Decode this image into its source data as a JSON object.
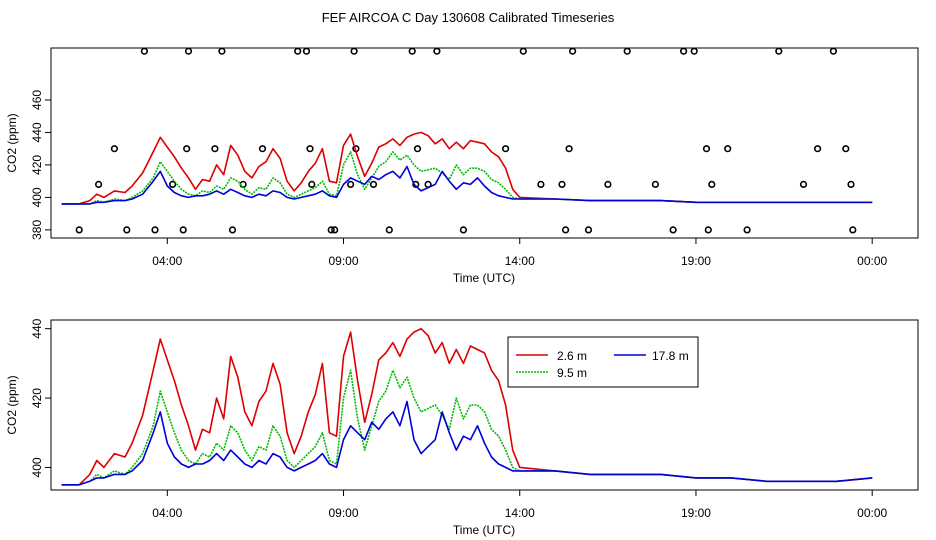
{
  "title": "FEF AIRCOA C  Day 130608  Calibrated Timeseries",
  "chart_data": [
    {
      "type": "line",
      "ylabel": "CO2 (ppm)",
      "xlabel": "Time (UTC)",
      "xlim": [
        -0.3,
        24.3
      ],
      "ylim": [
        375,
        492
      ],
      "x_ticks": [
        {
          "x": 3,
          "label": "04:00"
        },
        {
          "x": 8,
          "label": "09:00"
        },
        {
          "x": 13,
          "label": "14:00"
        },
        {
          "x": 18,
          "label": "19:00"
        },
        {
          "x": 23,
          "label": "00:00"
        }
      ],
      "y_ticks": [
        380,
        400,
        420,
        440,
        460
      ],
      "series": [
        {
          "name": "2.6 m",
          "color": "#dd0000",
          "x": [
            0,
            0.5,
            0.8,
            1.0,
            1.2,
            1.5,
            1.8,
            2.0,
            2.3,
            2.6,
            2.8,
            3.0,
            3.2,
            3.4,
            3.6,
            3.8,
            4.0,
            4.2,
            4.4,
            4.6,
            4.8,
            5.0,
            5.2,
            5.4,
            5.6,
            5.8,
            6.0,
            6.2,
            6.4,
            6.6,
            6.8,
            7.0,
            7.2,
            7.4,
            7.6,
            7.8,
            8.0,
            8.2,
            8.4,
            8.6,
            8.8,
            9.0,
            9.2,
            9.4,
            9.6,
            9.8,
            10.0,
            10.2,
            10.4,
            10.6,
            10.8,
            11.0,
            11.2,
            11.4,
            11.6,
            11.8,
            12.0,
            12.2,
            12.4,
            12.6,
            12.8,
            13,
            14,
            15,
            16,
            17,
            18,
            19,
            20,
            21,
            22,
            23
          ],
          "y": [
            396,
            396,
            398,
            402,
            400,
            404,
            403,
            407,
            415,
            428,
            437,
            431,
            425,
            418,
            412,
            405,
            411,
            410,
            420,
            414,
            432,
            426,
            416,
            412,
            419,
            422,
            430,
            424,
            410,
            404,
            409,
            416,
            421,
            430,
            410,
            409,
            432,
            439,
            425,
            413,
            421,
            431,
            433,
            436,
            432,
            437,
            439,
            440,
            438,
            433,
            436,
            430,
            434,
            430,
            435,
            434,
            433,
            428,
            425,
            418,
            405,
            400,
            399,
            398,
            398,
            398,
            397,
            397,
            397,
            397,
            397,
            397
          ]
        },
        {
          "name": "9.5 m",
          "color": "#00bb00",
          "x": [
            0,
            0.5,
            0.8,
            1.0,
            1.2,
            1.5,
            1.8,
            2.0,
            2.3,
            2.6,
            2.8,
            3.0,
            3.2,
            3.4,
            3.6,
            3.8,
            4.0,
            4.2,
            4.4,
            4.6,
            4.8,
            5.0,
            5.2,
            5.4,
            5.6,
            5.8,
            6.0,
            6.2,
            6.4,
            6.6,
            6.8,
            7.0,
            7.2,
            7.4,
            7.6,
            7.8,
            8.0,
            8.2,
            8.4,
            8.6,
            8.8,
            9.0,
            9.2,
            9.4,
            9.6,
            9.8,
            10.0,
            10.2,
            10.4,
            10.6,
            10.8,
            11.0,
            11.2,
            11.4,
            11.6,
            11.8,
            12.0,
            12.2,
            12.4,
            12.6,
            12.8,
            13,
            14,
            15,
            16,
            17,
            18,
            19,
            20,
            21,
            22,
            23
          ],
          "y": [
            396,
            396,
            396,
            398,
            397,
            399,
            398,
            400,
            404,
            412,
            422,
            416,
            410,
            405,
            402,
            401,
            404,
            403,
            407,
            405,
            412,
            410,
            405,
            402,
            406,
            405,
            412,
            409,
            402,
            400,
            402,
            404,
            406,
            410,
            402,
            401,
            420,
            428,
            414,
            405,
            412,
            419,
            422,
            428,
            423,
            426,
            420,
            416,
            417,
            418,
            415,
            411,
            420,
            414,
            418,
            418,
            416,
            411,
            409,
            405,
            400,
            399,
            399,
            398,
            398,
            398,
            397,
            397,
            397,
            397,
            397,
            397
          ]
        },
        {
          "name": "17.8 m",
          "color": "#0000dd",
          "x": [
            0,
            0.5,
            0.8,
            1.0,
            1.2,
            1.5,
            1.8,
            2.0,
            2.3,
            2.6,
            2.8,
            3.0,
            3.2,
            3.4,
            3.6,
            3.8,
            4.0,
            4.2,
            4.4,
            4.6,
            4.8,
            5.0,
            5.2,
            5.4,
            5.6,
            5.8,
            6.0,
            6.2,
            6.4,
            6.6,
            6.8,
            7.0,
            7.2,
            7.4,
            7.6,
            7.8,
            8.0,
            8.2,
            8.4,
            8.6,
            8.8,
            9.0,
            9.2,
            9.4,
            9.6,
            9.8,
            10.0,
            10.2,
            10.4,
            10.6,
            10.8,
            11.0,
            11.2,
            11.4,
            11.6,
            11.8,
            12.0,
            12.2,
            12.4,
            12.6,
            12.8,
            13,
            14,
            15,
            16,
            17,
            18,
            19,
            20,
            21,
            22,
            23
          ],
          "y": [
            396,
            396,
            396,
            397,
            397,
            398,
            398,
            399,
            402,
            410,
            416,
            407,
            403,
            401,
            400,
            401,
            401,
            402,
            404,
            402,
            405,
            403,
            401,
            400,
            402,
            401,
            404,
            403,
            400,
            399,
            400,
            401,
            402,
            404,
            401,
            400,
            408,
            412,
            410,
            408,
            413,
            411,
            414,
            416,
            412,
            419,
            408,
            404,
            406,
            408,
            416,
            410,
            405,
            409,
            408,
            412,
            407,
            403,
            401,
            400,
            399,
            399,
            399,
            398,
            398,
            398,
            397,
            397,
            397,
            397,
            397,
            397
          ]
        }
      ],
      "point_series": {
        "x": [
          0.5,
          1.05,
          1.5,
          1.85,
          2.35,
          2.65,
          3.15,
          3.45,
          3.55,
          3.6,
          4.35,
          4.55,
          4.85,
          5.15,
          5.7,
          6.7,
          6.95,
          7.05,
          7.1,
          7.65,
          7.75,
          8.2,
          8.3,
          8.35,
          8.85,
          9.3,
          9.95,
          10.05,
          10.1,
          10.4,
          10.65,
          11.4,
          12.6,
          13.1,
          13.6,
          14.2,
          14.3,
          14.4,
          14.5,
          14.95,
          15.5,
          16.05,
          16.85,
          17.35,
          17.65,
          17.95,
          18.3,
          18.35,
          18.45,
          18.9,
          19.45,
          20.35,
          21.05,
          21.45,
          21.9,
          22.25,
          22.4,
          22.45
        ],
        "y": [
          380,
          408,
          430,
          380,
          490,
          380,
          408,
          380,
          430,
          490,
          430,
          490,
          380,
          408,
          430,
          490,
          490,
          430,
          408,
          380,
          380,
          408,
          490,
          430,
          408,
          380,
          490,
          408,
          430,
          408,
          490,
          380,
          430,
          490,
          408,
          408,
          380,
          430,
          490,
          380,
          408,
          490,
          408,
          380,
          490,
          490,
          430,
          380,
          408,
          430,
          380,
          490,
          408,
          430,
          490,
          430,
          408,
          380
        ]
      }
    },
    {
      "type": "line",
      "ylabel": "CO2 (ppm)",
      "xlabel": "Time (UTC)",
      "xlim": [
        -0.3,
        24.3
      ],
      "ylim": [
        393.5,
        442.5
      ],
      "x_ticks": [
        {
          "x": 3,
          "label": "04:00"
        },
        {
          "x": 8,
          "label": "09:00"
        },
        {
          "x": 13,
          "label": "14:00"
        },
        {
          "x": 18,
          "label": "19:00"
        },
        {
          "x": 23,
          "label": "00:00"
        }
      ],
      "y_ticks": [
        400,
        420,
        440
      ],
      "legend": {
        "placement": "top-right",
        "entries": [
          {
            "label": "2.6 m",
            "color": "#dd0000"
          },
          {
            "label": "17.8 m",
            "color": "#0000dd"
          },
          {
            "label": "9.5 m",
            "color": "#00bb00"
          }
        ]
      },
      "series": [
        {
          "name": "2.6 m",
          "color": "#dd0000",
          "x": [
            0,
            0.5,
            0.8,
            1.0,
            1.2,
            1.5,
            1.8,
            2.0,
            2.3,
            2.6,
            2.8,
            3.0,
            3.2,
            3.4,
            3.6,
            3.8,
            4.0,
            4.2,
            4.4,
            4.6,
            4.8,
            5.0,
            5.2,
            5.4,
            5.6,
            5.8,
            6.0,
            6.2,
            6.4,
            6.6,
            6.8,
            7.0,
            7.2,
            7.4,
            7.6,
            7.8,
            8.0,
            8.2,
            8.4,
            8.6,
            8.8,
            9.0,
            9.2,
            9.4,
            9.6,
            9.8,
            10.0,
            10.2,
            10.4,
            10.6,
            10.8,
            11.0,
            11.2,
            11.4,
            11.6,
            11.8,
            12.0,
            12.2,
            12.4,
            12.6,
            12.8,
            13,
            14,
            15,
            16,
            17,
            18,
            19,
            20,
            21,
            22,
            23
          ],
          "y": [
            395,
            395,
            398,
            402,
            400,
            404,
            403,
            407,
            415,
            428,
            437,
            431,
            425,
            418,
            412,
            405,
            411,
            410,
            420,
            414,
            432,
            426,
            416,
            412,
            419,
            422,
            430,
            424,
            410,
            404,
            409,
            416,
            421,
            430,
            410,
            409,
            432,
            439,
            425,
            413,
            421,
            431,
            433,
            436,
            432,
            437,
            439,
            440,
            438,
            433,
            436,
            430,
            434,
            430,
            435,
            434,
            433,
            428,
            425,
            418,
            405,
            400,
            399,
            398,
            398,
            398,
            397,
            397,
            396,
            396,
            396,
            397
          ]
        },
        {
          "name": "9.5 m",
          "color": "#00bb00",
          "x": [
            0,
            0.5,
            0.8,
            1.0,
            1.2,
            1.5,
            1.8,
            2.0,
            2.3,
            2.6,
            2.8,
            3.0,
            3.2,
            3.4,
            3.6,
            3.8,
            4.0,
            4.2,
            4.4,
            4.6,
            4.8,
            5.0,
            5.2,
            5.4,
            5.6,
            5.8,
            6.0,
            6.2,
            6.4,
            6.6,
            6.8,
            7.0,
            7.2,
            7.4,
            7.6,
            7.8,
            8.0,
            8.2,
            8.4,
            8.6,
            8.8,
            9.0,
            9.2,
            9.4,
            9.6,
            9.8,
            10.0,
            10.2,
            10.4,
            10.6,
            10.8,
            11.0,
            11.2,
            11.4,
            11.6,
            11.8,
            12.0,
            12.2,
            12.4,
            12.6,
            12.8,
            13,
            14,
            15,
            16,
            17,
            18,
            19,
            20,
            21,
            22,
            23
          ],
          "y": [
            395,
            395,
            396,
            398,
            397,
            399,
            398,
            400,
            404,
            412,
            422,
            416,
            410,
            405,
            402,
            401,
            404,
            403,
            407,
            405,
            412,
            410,
            405,
            402,
            406,
            405,
            412,
            409,
            402,
            400,
            402,
            404,
            406,
            410,
            402,
            401,
            420,
            428,
            414,
            405,
            412,
            419,
            422,
            428,
            423,
            426,
            420,
            416,
            417,
            418,
            415,
            411,
            420,
            414,
            418,
            418,
            416,
            411,
            409,
            405,
            400,
            399,
            399,
            398,
            398,
            398,
            397,
            397,
            396,
            396,
            396,
            397
          ]
        },
        {
          "name": "17.8 m",
          "color": "#0000dd",
          "x": [
            0,
            0.5,
            0.8,
            1.0,
            1.2,
            1.5,
            1.8,
            2.0,
            2.3,
            2.6,
            2.8,
            3.0,
            3.2,
            3.4,
            3.6,
            3.8,
            4.0,
            4.2,
            4.4,
            4.6,
            4.8,
            5.0,
            5.2,
            5.4,
            5.6,
            5.8,
            6.0,
            6.2,
            6.4,
            6.6,
            6.8,
            7.0,
            7.2,
            7.4,
            7.6,
            7.8,
            8.0,
            8.2,
            8.4,
            8.6,
            8.8,
            9.0,
            9.2,
            9.4,
            9.6,
            9.8,
            10.0,
            10.2,
            10.4,
            10.6,
            10.8,
            11.0,
            11.2,
            11.4,
            11.6,
            11.8,
            12.0,
            12.2,
            12.4,
            12.6,
            12.8,
            13,
            14,
            15,
            16,
            17,
            18,
            19,
            20,
            21,
            22,
            23
          ],
          "y": [
            395,
            395,
            396,
            397,
            397,
            398,
            398,
            399,
            402,
            410,
            416,
            407,
            403,
            401,
            400,
            401,
            401,
            402,
            404,
            402,
            405,
            403,
            401,
            400,
            402,
            401,
            404,
            403,
            400,
            399,
            400,
            401,
            402,
            404,
            401,
            400,
            408,
            412,
            410,
            408,
            413,
            411,
            414,
            416,
            412,
            419,
            408,
            404,
            406,
            408,
            416,
            410,
            405,
            409,
            408,
            412,
            407,
            403,
            401,
            400,
            399,
            399,
            399,
            398,
            398,
            398,
            397,
            397,
            396,
            396,
            396,
            397
          ]
        }
      ]
    }
  ]
}
